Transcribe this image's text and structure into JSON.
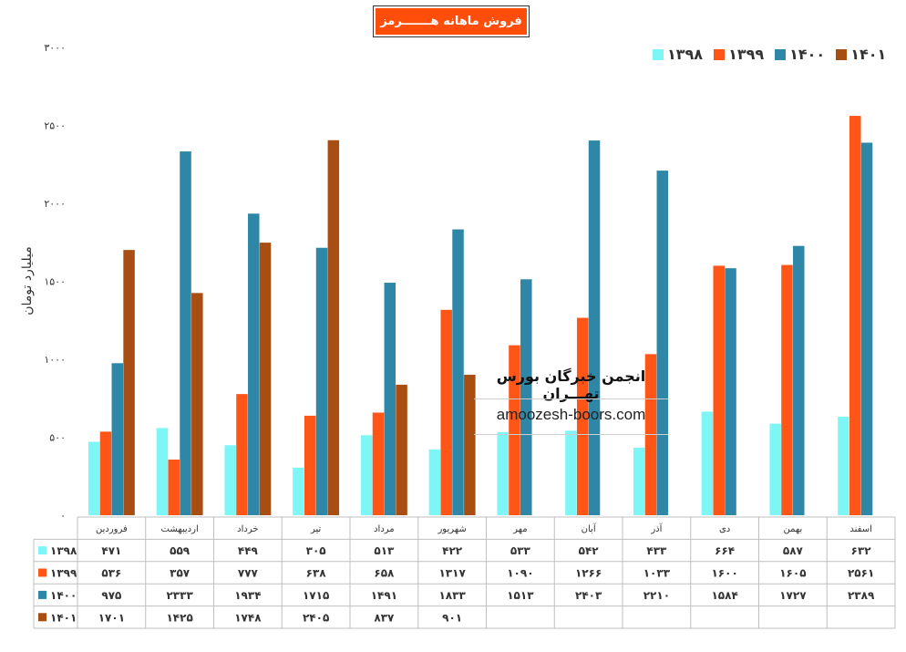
{
  "title": "فروش ماهانه هـــــــرمز",
  "watermark": {
    "name": "انجمن خبرگان بورس تهـــران",
    "url": "amoozesh-boors.com"
  },
  "chart_data": {
    "type": "bar",
    "title": "فروش ماهانه هـــــــرمز",
    "ylabel": "میلیارد تومان",
    "xlabel": "",
    "ylim": [
      0,
      3000
    ],
    "yticks": [
      0,
      500,
      1000,
      1500,
      2000,
      2500,
      3000
    ],
    "ytick_labels": [
      "۰",
      "۵۰۰",
      "۱۰۰۰",
      "۱۵۰۰",
      "۲۰۰۰",
      "۲۵۰۰",
      "۳۰۰۰"
    ],
    "categories": [
      "فروردین",
      "اردیبهشت",
      "خرداد",
      "تیر",
      "مرداد",
      "شهریور",
      "مهر",
      "آبان",
      "آذر",
      "دی",
      "بهمن",
      "اسفند"
    ],
    "legend_position": "top-right",
    "series": [
      {
        "name": "۱۳۹۸",
        "color": "#7ff6f6",
        "values": [
          471,
          559,
          449,
          305,
          513,
          422,
          533,
          542,
          433,
          664,
          587,
          632
        ],
        "labels": [
          "۴۷۱",
          "۵۵۹",
          "۴۴۹",
          "۳۰۵",
          "۵۱۳",
          "۴۲۲",
          "۵۳۳",
          "۵۴۲",
          "۴۳۳",
          "۶۶۴",
          "۵۸۷",
          "۶۳۲"
        ]
      },
      {
        "name": "۱۳۹۹",
        "color": "#ff5517",
        "values": [
          536,
          357,
          777,
          638,
          658,
          1317,
          1090,
          1266,
          1033,
          1600,
          1605,
          2561
        ],
        "labels": [
          "۵۳۶",
          "۳۵۷",
          "۷۷۷",
          "۶۳۸",
          "۶۵۸",
          "۱۳۱۷",
          "۱۰۹۰",
          "۱۲۶۶",
          "۱۰۳۳",
          "۱۶۰۰",
          "۱۶۰۵",
          "۲۵۶۱"
        ]
      },
      {
        "name": "۱۴۰۰",
        "color": "#2e87a6",
        "values": [
          975,
          2333,
          1934,
          1715,
          1491,
          1833,
          1513,
          2403,
          2210,
          1584,
          1727,
          2389
        ],
        "labels": [
          "۹۷۵",
          "۲۳۳۳",
          "۱۹۳۴",
          "۱۷۱۵",
          "۱۴۹۱",
          "۱۸۳۳",
          "۱۵۱۳",
          "۲۴۰۳",
          "۲۲۱۰",
          "۱۵۸۴",
          "۱۷۲۷",
          "۲۳۸۹"
        ]
      },
      {
        "name": "۱۴۰۱",
        "color": "#a94e12",
        "values": [
          1701,
          1425,
          1748,
          2405,
          837,
          901,
          null,
          null,
          null,
          null,
          null,
          null
        ],
        "labels": [
          "۱۷۰۱",
          "۱۴۲۵",
          "۱۷۴۸",
          "۲۴۰۵",
          "۸۳۷",
          "۹۰۱",
          "",
          "",
          "",
          "",
          "",
          ""
        ]
      }
    ]
  }
}
